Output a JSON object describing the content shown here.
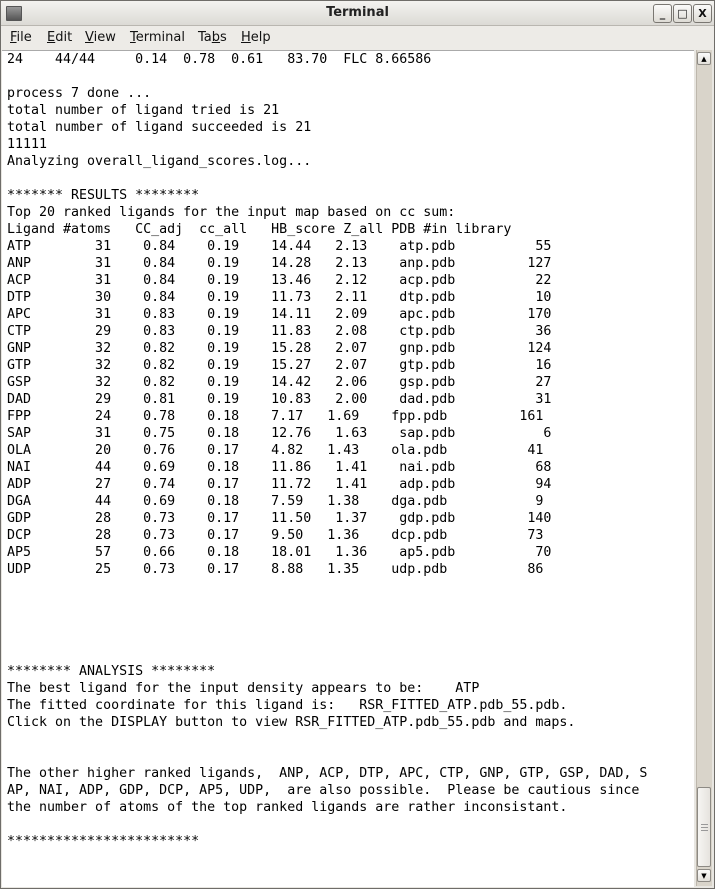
{
  "window": {
    "title": "Terminal"
  },
  "menu": [
    {
      "label": "File",
      "u": "F",
      "rest": "ile"
    },
    {
      "label": "Edit",
      "u": "E",
      "rest": "dit"
    },
    {
      "label": "View",
      "u": "V",
      "rest": "iew"
    },
    {
      "label": "Terminal",
      "u": "T",
      "rest": "erminal"
    },
    {
      "label": "Tabs",
      "pre": "Ta",
      "u": "b",
      "rest": "s"
    },
    {
      "label": "Help",
      "u": "H",
      "rest": "elp"
    }
  ],
  "terminal": {
    "lines": [
      "24    44/44     0.14  0.78  0.61   83.70  FLC 8.66586",
      "",
      "process 7 done ...",
      "total number of ligand tried is 21",
      "total number of ligand succeeded is 21",
      "11111",
      "Analyzing overall_ligand_scores.log...",
      "",
      "******* RESULTS ********",
      "Top 20 ranked ligands for the input map based on cc sum:",
      "Ligand #atoms   CC_adj  cc_all   HB_score Z_all PDB #in library",
      "ATP        31    0.84    0.19    14.44   2.13    atp.pdb          55",
      "ANP        31    0.84    0.19    14.28   2.13    anp.pdb         127",
      "ACP        31    0.84    0.19    13.46   2.12    acp.pdb          22",
      "DTP        30    0.84    0.19    11.73   2.11    dtp.pdb          10",
      "APC        31    0.83    0.19    14.11   2.09    apc.pdb         170",
      "CTP        29    0.83    0.19    11.83   2.08    ctp.pdb          36",
      "GNP        32    0.82    0.19    15.28   2.07    gnp.pdb         124",
      "GTP        32    0.82    0.19    15.27   2.07    gtp.pdb          16",
      "GSP        32    0.82    0.19    14.42   2.06    gsp.pdb          27",
      "DAD        29    0.81    0.19    10.83   2.00    dad.pdb          31",
      "FPP        24    0.78    0.18    7.17   1.69    fpp.pdb         161",
      "SAP        31    0.75    0.18    12.76   1.63    sap.pdb           6",
      "OLA        20    0.76    0.17    4.82   1.43    ola.pdb          41",
      "NAI        44    0.69    0.18    11.86   1.41    nai.pdb          68",
      "ADP        27    0.74    0.17    11.72   1.41    adp.pdb          94",
      "DGA        44    0.69    0.18    7.59   1.38    dga.pdb           9",
      "GDP        28    0.73    0.17    11.50   1.37    gdp.pdb         140",
      "DCP        28    0.73    0.17    9.50   1.36    dcp.pdb          73",
      "AP5        57    0.66    0.18    18.01   1.36    ap5.pdb          70",
      "UDP        25    0.73    0.17    8.88   1.35    udp.pdb          86",
      "",
      "",
      "",
      "",
      "",
      "******** ANALYSIS ********",
      "The best ligand for the input density appears to be:    ATP",
      "The fitted coordinate for this ligand is:   RSR_FITTED_ATP.pdb_55.pdb.",
      "Click on the DISPLAY button to view RSR_FITTED_ATP.pdb_55.pdb and maps.",
      "",
      "",
      "The other higher ranked ligands,  ANP, ACP, DTP, APC, CTP, GNP, GTP, GSP, DAD, S",
      "AP, NAI, ADP, GDP, DCP, AP5, UDP,  are also possible.  Please be cautious since",
      "the number of atoms of the top ranked ligands are rather inconsistant.",
      "",
      "************************"
    ]
  },
  "controls": {
    "minimize": "_",
    "maximize": "□",
    "close": "X"
  },
  "scrollbar": {
    "position_percent": 100
  }
}
